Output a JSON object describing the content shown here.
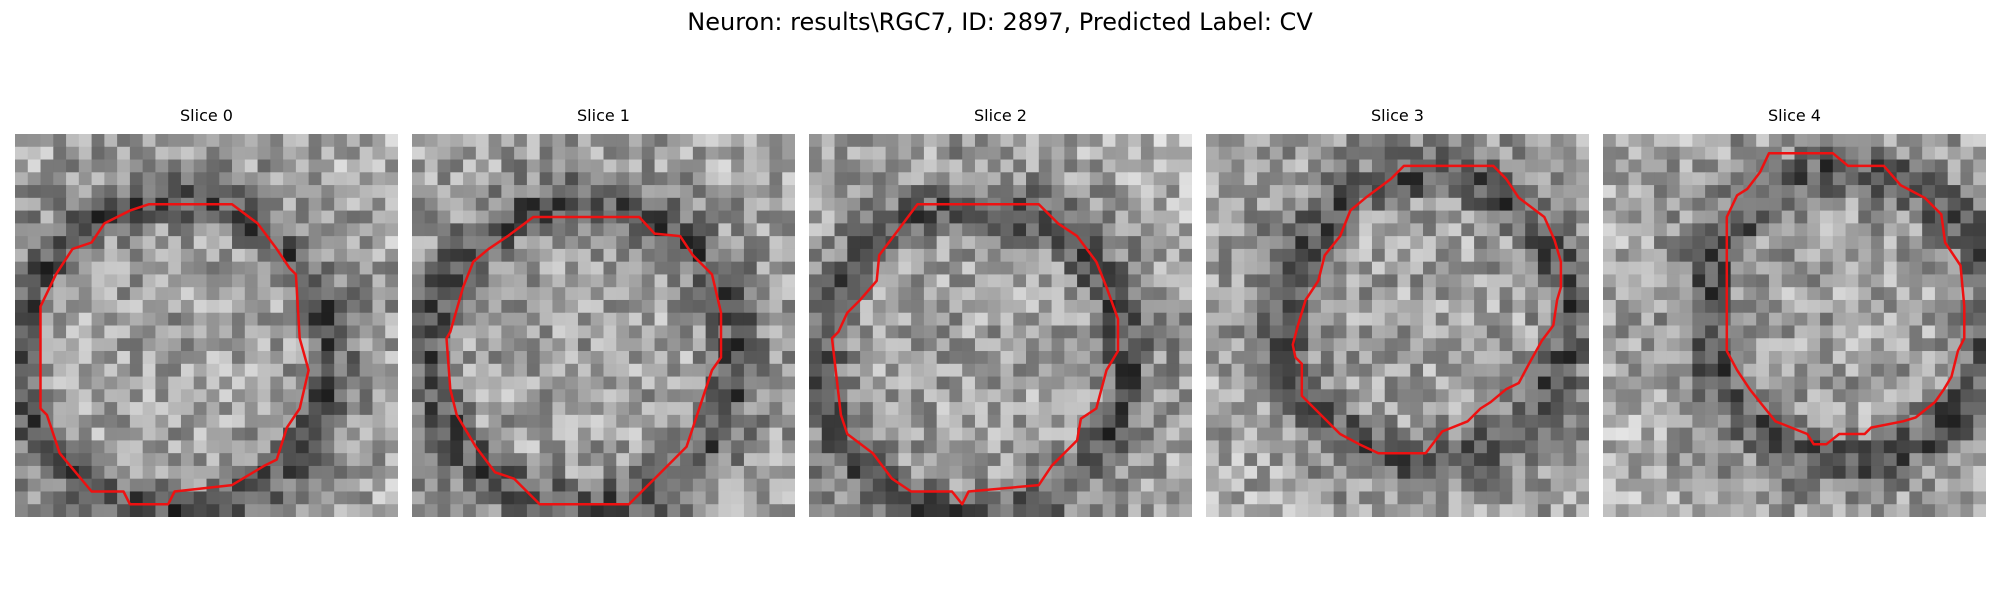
{
  "figure": {
    "title": "Neuron: results\\RGC7, ID: 2897, Predicted Label: CV"
  },
  "outline_color": "#ee1111",
  "image_grid": 30,
  "panels": [
    {
      "title": "Slice 0",
      "seed": 11,
      "outline": [
        [
          10.5,
          5.5
        ],
        [
          17,
          5.5
        ],
        [
          19,
          7
        ],
        [
          20.5,
          9
        ],
        [
          21.5,
          10.5
        ],
        [
          22,
          11
        ],
        [
          22.3,
          16
        ],
        [
          23,
          18.5
        ],
        [
          22.3,
          21.5
        ],
        [
          21.3,
          23
        ],
        [
          20.5,
          25.5
        ],
        [
          19.5,
          26
        ],
        [
          17,
          27.5
        ],
        [
          12.5,
          28
        ],
        [
          12,
          29
        ],
        [
          9,
          29
        ],
        [
          8.5,
          28
        ],
        [
          6,
          28
        ],
        [
          3.5,
          25
        ],
        [
          2.5,
          22
        ],
        [
          2,
          21.5
        ],
        [
          2,
          14
        ],
        [
          2,
          13.5
        ],
        [
          3.2,
          11
        ],
        [
          4.5,
          9
        ],
        [
          6,
          8.5
        ],
        [
          7,
          7
        ],
        [
          9,
          6
        ]
      ]
    },
    {
      "title": "Slice 1",
      "seed": 23,
      "outline": [
        [
          9.5,
          6.5
        ],
        [
          17.8,
          6.5
        ],
        [
          19,
          7.8
        ],
        [
          21,
          8
        ],
        [
          22,
          9.5
        ],
        [
          23.5,
          11
        ],
        [
          24.2,
          14
        ],
        [
          24.2,
          17.5
        ],
        [
          23.5,
          18.5
        ],
        [
          23,
          20
        ],
        [
          22,
          23
        ],
        [
          21.5,
          24.5
        ],
        [
          20.5,
          25.5
        ],
        [
          17,
          29
        ],
        [
          10,
          29
        ],
        [
          9,
          28
        ],
        [
          8,
          27
        ],
        [
          6.5,
          26.5
        ],
        [
          5,
          24.5
        ],
        [
          3.5,
          22
        ],
        [
          3,
          20
        ],
        [
          2.7,
          16
        ],
        [
          3,
          15.5
        ],
        [
          4,
          12
        ],
        [
          4.8,
          10
        ],
        [
          6,
          9
        ],
        [
          7.5,
          8
        ]
      ]
    },
    {
      "title": "Slice 2",
      "seed": 37,
      "outline": [
        [
          8.5,
          5.5
        ],
        [
          18,
          5.5
        ],
        [
          19.5,
          7
        ],
        [
          21,
          8
        ],
        [
          22.5,
          10
        ],
        [
          23.3,
          12
        ],
        [
          24.2,
          14.5
        ],
        [
          24.2,
          17
        ],
        [
          23.3,
          18.5
        ],
        [
          22.5,
          21.5
        ],
        [
          21.3,
          22.3
        ],
        [
          21,
          24
        ],
        [
          19,
          26
        ],
        [
          18,
          27.5
        ],
        [
          12.5,
          28
        ],
        [
          12,
          29
        ],
        [
          11.2,
          28
        ],
        [
          8,
          28
        ],
        [
          6.5,
          27
        ],
        [
          5,
          25
        ],
        [
          3,
          23.5
        ],
        [
          2.5,
          22
        ],
        [
          1.8,
          16
        ],
        [
          2.3,
          15.5
        ],
        [
          3,
          14
        ],
        [
          4,
          13
        ],
        [
          5.3,
          11.5
        ],
        [
          5.5,
          9.5
        ],
        [
          7,
          7.5
        ]
      ]
    },
    {
      "title": "Slice 3",
      "seed": 53,
      "outline": [
        [
          15.5,
          2.5
        ],
        [
          22.5,
          2.5
        ],
        [
          23.5,
          3.5
        ],
        [
          24.5,
          5
        ],
        [
          26.5,
          6.5
        ],
        [
          27.3,
          8.3
        ],
        [
          27.8,
          10
        ],
        [
          27.8,
          12
        ],
        [
          27.5,
          13
        ],
        [
          27.2,
          15
        ],
        [
          26.3,
          16.2
        ],
        [
          25.3,
          18
        ],
        [
          24.5,
          19.5
        ],
        [
          23.5,
          20
        ],
        [
          22.3,
          21
        ],
        [
          21.5,
          21.5
        ],
        [
          20.5,
          22.5
        ],
        [
          18.5,
          23.3
        ],
        [
          17.2,
          25
        ],
        [
          13.5,
          25
        ],
        [
          12,
          24.3
        ],
        [
          10.5,
          23.5
        ],
        [
          8.5,
          21.5
        ],
        [
          7.5,
          20.5
        ],
        [
          7.5,
          18
        ],
        [
          7,
          17.5
        ],
        [
          6.8,
          16.5
        ],
        [
          7.2,
          15
        ],
        [
          7.8,
          13
        ],
        [
          8.8,
          11.5
        ],
        [
          9.3,
          9.5
        ],
        [
          10.5,
          8
        ],
        [
          11.3,
          6
        ],
        [
          12.5,
          5
        ],
        [
          14.5,
          3.5
        ]
      ]
    },
    {
      "title": "Slice 4",
      "seed": 71,
      "outline": [
        [
          13,
          1.5
        ],
        [
          18,
          1.5
        ],
        [
          19.2,
          2.5
        ],
        [
          22,
          2.5
        ],
        [
          23.3,
          4
        ],
        [
          25.2,
          5
        ],
        [
          26.5,
          6.3
        ],
        [
          26.8,
          8.5
        ],
        [
          28,
          10.3
        ],
        [
          28.3,
          13.5
        ],
        [
          28.3,
          16
        ],
        [
          27.8,
          17
        ],
        [
          27.3,
          19
        ],
        [
          26.7,
          20
        ],
        [
          26,
          21
        ],
        [
          24.5,
          22.2
        ],
        [
          23.5,
          22.5
        ],
        [
          21,
          23
        ],
        [
          20.5,
          23.5
        ],
        [
          18.5,
          23.5
        ],
        [
          17.5,
          24.3
        ],
        [
          16.5,
          24.3
        ],
        [
          16,
          23.5
        ],
        [
          13.5,
          22.5
        ],
        [
          12.3,
          21
        ],
        [
          11.5,
          20
        ],
        [
          10.5,
          18.5
        ],
        [
          9.7,
          17
        ],
        [
          9.7,
          16
        ],
        [
          9.7,
          6.5
        ],
        [
          10.5,
          4.8
        ],
        [
          11.3,
          4.3
        ],
        [
          12.3,
          3
        ]
      ]
    }
  ]
}
